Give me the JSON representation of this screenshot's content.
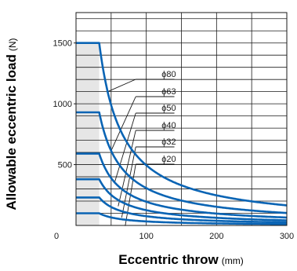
{
  "chart_data": {
    "type": "line",
    "xlabel": "Eccentric throw",
    "xunit": "(mm)",
    "ylabel": "Allowable eccentric load",
    "yunit": "(N)",
    "xlim": [
      0,
      300
    ],
    "ylim": [
      0,
      1750
    ],
    "x_ticks": [
      0,
      100,
      200,
      300
    ],
    "y_ticks": [
      500,
      1000,
      1500
    ],
    "grid": true,
    "line_color": "#0a64b4",
    "shade_color": "#e6e6e6",
    "series": [
      {
        "name": "ϕ80",
        "plateau": 1500,
        "knee_x": 33,
        "x": [
          0,
          33,
          50,
          75,
          100,
          150,
          200,
          250,
          300
        ],
        "values": [
          1500,
          1500,
          990,
          660,
          495,
          330,
          248,
          198,
          165
        ]
      },
      {
        "name": "ϕ63",
        "plateau": 930,
        "knee_x": 33,
        "x": [
          0,
          33,
          50,
          75,
          100,
          150,
          200,
          250,
          300
        ],
        "values": [
          930,
          930,
          615,
          410,
          307,
          205,
          154,
          123,
          103
        ]
      },
      {
        "name": "ϕ50",
        "plateau": 590,
        "knee_x": 33,
        "x": [
          0,
          33,
          50,
          75,
          100,
          150,
          200,
          250,
          300
        ],
        "values": [
          590,
          590,
          390,
          260,
          195,
          130,
          98,
          78,
          65
        ]
      },
      {
        "name": "ϕ40",
        "plateau": 380,
        "knee_x": 33,
        "x": [
          0,
          33,
          50,
          75,
          100,
          150,
          200,
          250,
          300
        ],
        "values": [
          380,
          380,
          251,
          167,
          125,
          84,
          63,
          50,
          42
        ]
      },
      {
        "name": "ϕ32",
        "plateau": 230,
        "knee_x": 33,
        "x": [
          0,
          33,
          50,
          75,
          100,
          150,
          200,
          250,
          300
        ],
        "values": [
          230,
          230,
          152,
          101,
          76,
          51,
          38,
          30,
          25
        ]
      },
      {
        "name": "ϕ20",
        "plateau": 100,
        "knee_x": 33,
        "x": [
          0,
          33,
          50,
          75,
          100,
          150,
          200,
          250,
          300
        ],
        "values": [
          100,
          100,
          66,
          44,
          33,
          22,
          17,
          13,
          11
        ]
      }
    ]
  }
}
